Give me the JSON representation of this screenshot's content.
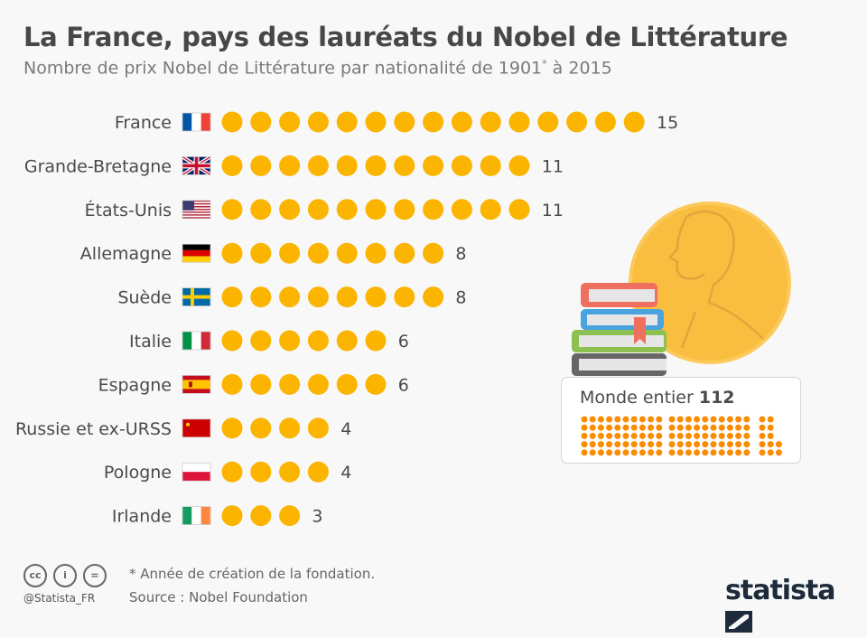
{
  "title": "La France, pays des lauréats du Nobel de Littérature",
  "subtitle": "Nombre de prix Nobel de Littérature par nationalité de 1901",
  "subtitle_sup": "*",
  "subtitle_end": " à 2015",
  "chart_data": {
    "type": "pictogram-bar",
    "categories": [
      "France",
      "Grande-Bretagne",
      "États-Unis",
      "Allemagne",
      "Suède",
      "Italie",
      "Espagne",
      "Russie et ex-URSS",
      "Pologne",
      "Irlande"
    ],
    "values": [
      15,
      11,
      11,
      8,
      8,
      6,
      6,
      4,
      4,
      3
    ],
    "flags": [
      "fr",
      "gb",
      "us",
      "de",
      "se",
      "it",
      "es",
      "su",
      "pl",
      "ie"
    ],
    "unit_per_dot": 1,
    "total_label": "Monde entier",
    "total_value": 112
  },
  "colors": {
    "dot": "#fbb400",
    "world_dot": "#f98c00",
    "medal": "#f9bd40",
    "text": "#4a4a4a"
  },
  "footer": {
    "note": "* Année de création de la fondation.",
    "source": "Source : Nobel Foundation",
    "handle": "@Statista_FR",
    "logo": "statista"
  }
}
